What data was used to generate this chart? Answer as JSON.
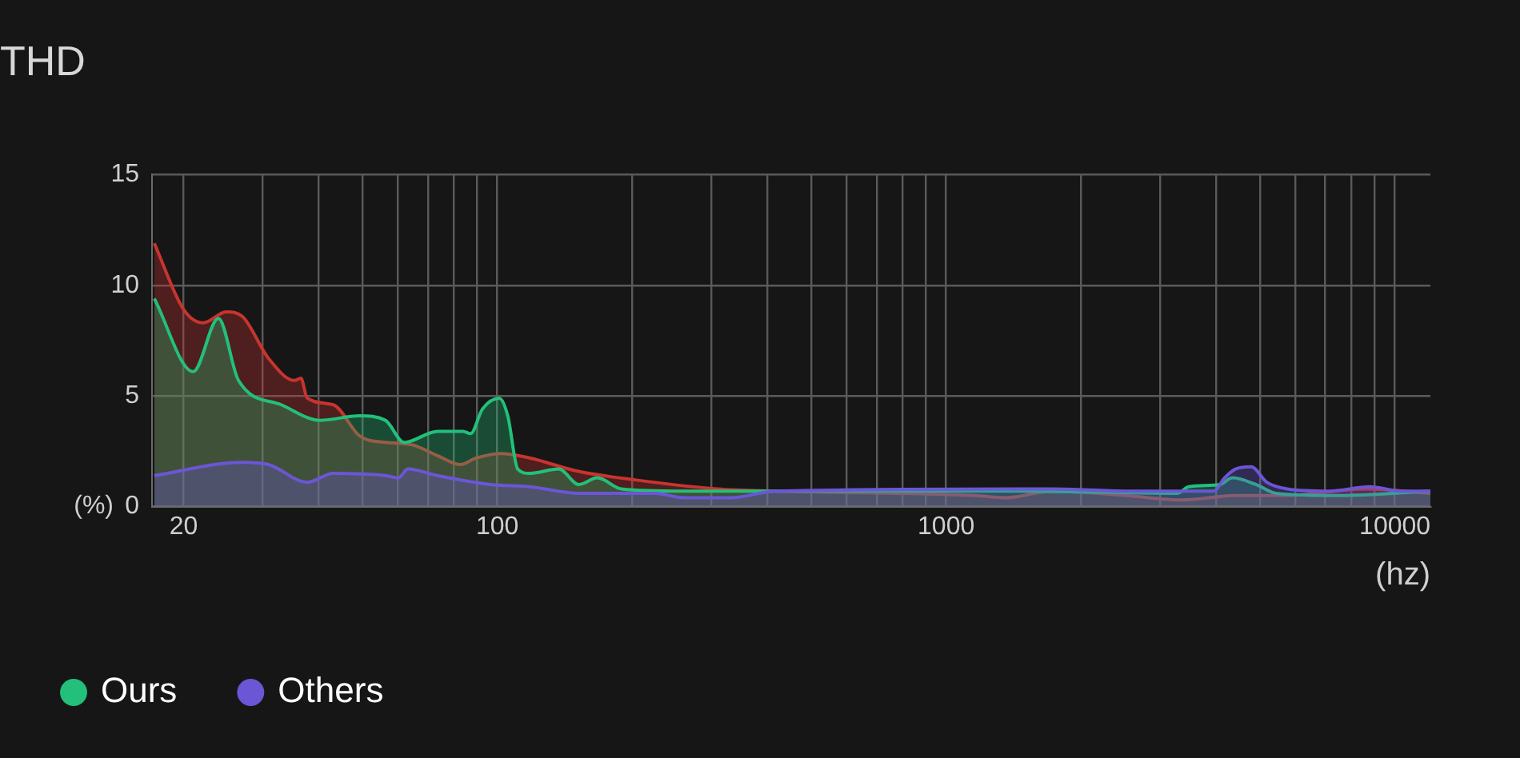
{
  "chart_data": {
    "type": "area",
    "title": "THD",
    "xlabel": "(hz)",
    "ylabel": "(%)",
    "log": "x",
    "grid": true,
    "legend": "bottom",
    "marker": "none",
    "line_style": "solid",
    "xlim": [
      17,
      12000
    ],
    "ylim": [
      0,
      15
    ],
    "yticks": [
      0,
      5,
      10,
      15
    ],
    "xticks": [
      20,
      {
        "value": 30,
        "label": null
      },
      {
        "value": 40,
        "label": null
      },
      {
        "value": 50,
        "label": null
      },
      {
        "value": 60,
        "label": null
      },
      {
        "value": 70,
        "label": null
      },
      {
        "value": 80,
        "label": null
      },
      {
        "value": 90,
        "label": null
      },
      100,
      {
        "value": 200,
        "label": null
      },
      {
        "value": 300,
        "label": null
      },
      {
        "value": 400,
        "label": null
      },
      {
        "value": 500,
        "label": null
      },
      {
        "value": 600,
        "label": null
      },
      {
        "value": 700,
        "label": null
      },
      {
        "value": 800,
        "label": null
      },
      {
        "value": 900,
        "label": null
      },
      1000,
      {
        "value": 2000,
        "label": null
      },
      {
        "value": 3000,
        "label": null
      },
      {
        "value": 4000,
        "label": null
      },
      {
        "value": 5000,
        "label": null
      },
      {
        "value": 6000,
        "label": null
      },
      {
        "value": 7000,
        "label": null
      },
      {
        "value": 8000,
        "label": null
      },
      {
        "value": 9000,
        "label": null
      },
      10000
    ],
    "series": [
      {
        "color": "#c8342f",
        "x": [
          17.2,
          20,
          22.1,
          24.9,
          27,
          30.9,
          35.3,
          36.5,
          37.7,
          43.1,
          49.3,
          56.3,
          64.4,
          73.6,
          82.7,
          89.9,
          102,
          118,
          151,
          204,
          309,
          416,
          1158,
          1359,
          1729,
          2519,
          3363,
          4416,
          5752,
          8589,
          12000
        ],
        "values": [
          11.9,
          8.9,
          8.3,
          8.8,
          8.6,
          6.7,
          5.7,
          5.8,
          4.9,
          4.6,
          3.2,
          2.9,
          2.8,
          2.3,
          1.9,
          2.2,
          2.4,
          2.2,
          1.6,
          1.2,
          0.8,
          0.7,
          0.5,
          0.4,
          0.7,
          0.5,
          0.3,
          0.5,
          0.5,
          0.8,
          0.6
        ]
      },
      {
        "name": "Ours",
        "color": "#22c07a",
        "x": [
          17.2,
          21,
          23.9,
          26.5,
          33,
          40.3,
          49.3,
          56.3,
          62,
          73.6,
          83.8,
          87.2,
          92.6,
          101,
          105.5,
          111,
          118,
          137,
          152,
          167,
          189,
          260,
          1359,
          3280,
          3471,
          4075,
          4345,
          4900,
          5438,
          7493,
          12000
        ],
        "values": [
          9.4,
          6.1,
          8.5,
          5.7,
          4.6,
          3.9,
          4.1,
          3.9,
          2.9,
          3.4,
          3.4,
          3.3,
          4.4,
          4.9,
          4.1,
          1.7,
          1.5,
          1.7,
          1.0,
          1.3,
          0.8,
          0.7,
          0.7,
          0.6,
          0.9,
          1.0,
          1.3,
          1.0,
          0.6,
          0.5,
          0.7
        ]
      },
      {
        "name": "Others",
        "color": "#6b56d6",
        "x": [
          17.2,
          27,
          30.9,
          37.7,
          43.1,
          56.3,
          60.2,
          63.2,
          73.6,
          96.4,
          118,
          152,
          225,
          260,
          332,
          416,
          1729,
          2519,
          3947,
          4174,
          4416,
          4784,
          5183,
          5752,
          7142,
          8796,
          10325,
          12000
        ],
        "values": [
          1.4,
          2.0,
          1.9,
          1.1,
          1.5,
          1.4,
          1.3,
          1.7,
          1.4,
          1.0,
          0.9,
          0.6,
          0.6,
          0.4,
          0.4,
          0.7,
          0.8,
          0.7,
          0.7,
          1.3,
          1.7,
          1.8,
          1.1,
          0.8,
          0.7,
          0.9,
          0.7,
          0.7
        ]
      }
    ]
  }
}
